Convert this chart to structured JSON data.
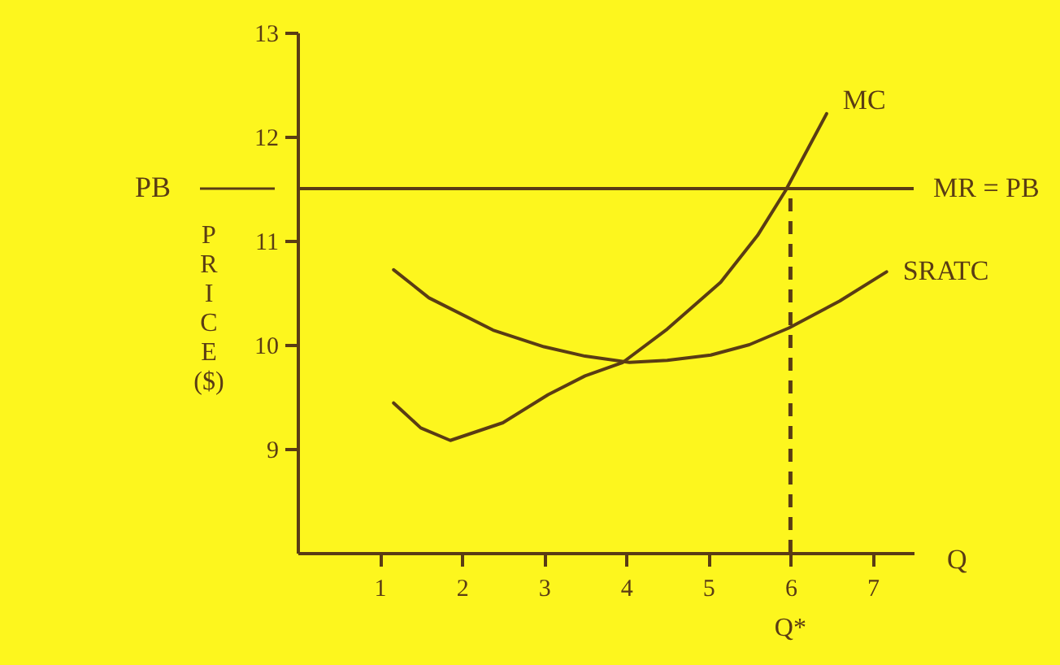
{
  "chart_data": {
    "type": "line",
    "xlabel": "Q",
    "ylabel": "PRICE ($)",
    "x": [
      1.17,
      1.5,
      1.86,
      2.5,
      3.05,
      3.5,
      3.96,
      4.5,
      5.15,
      5.6,
      5.94,
      6.44
    ],
    "series": [
      {
        "name": "MC",
        "color": "#5a3c14",
        "values": [
          9.44,
          9.2,
          9.08,
          9.25,
          9.52,
          9.7,
          9.83,
          10.15,
          10.6,
          11.05,
          11.48,
          12.22
        ]
      },
      {
        "name": "SRATC",
        "color": "#5a3c14",
        "x": [
          1.17,
          1.6,
          2.38,
          3.0,
          3.5,
          4.04,
          4.5,
          5.03,
          5.5,
          5.98,
          6.6,
          7.17
        ],
        "values": [
          10.72,
          10.45,
          10.14,
          9.98,
          9.89,
          9.83,
          9.85,
          9.9,
          10.0,
          10.16,
          10.42,
          10.7
        ]
      }
    ],
    "xlim": [
      0,
      7.5
    ],
    "ylim": [
      8,
      13
    ],
    "xticks": [
      1,
      2,
      3,
      4,
      5,
      6,
      7
    ],
    "yticks": [
      9,
      10,
      11,
      12,
      13
    ],
    "ref_lines": [
      {
        "axis": "y",
        "value": 11.5,
        "label": "MR = PB",
        "color": "#5a3c14",
        "line_style": "solid"
      },
      {
        "axis": "x",
        "value": 6,
        "label": "Q*",
        "color": "#5a3c14",
        "line_style": "dashed"
      }
    ],
    "annotations": [
      "PB"
    ],
    "grid": false,
    "marker": "none",
    "line_style": "solid"
  }
}
